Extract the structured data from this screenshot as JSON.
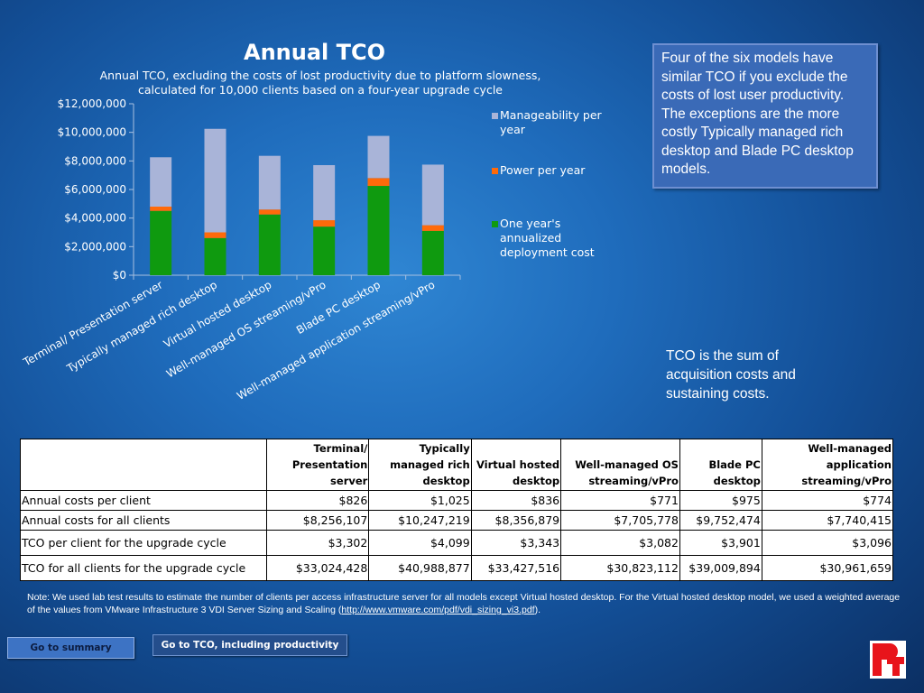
{
  "chart_data": {
    "type": "bar",
    "stacked": true,
    "title": "Annual TCO",
    "subtitle": "Annual TCO, excluding the costs of lost productivity due to platform slowness, calculated for 10,000 clients based on a four-year upgrade cycle",
    "categories": [
      "Terminal/ Presentation server",
      "Typically  managed rich desktop",
      "Virtual hosted desktop",
      "Well-managed OS streaming/vPro",
      "Blade PC desktop",
      "Well-managed application streaming/vPro"
    ],
    "series": [
      {
        "name": "One year's annualized deployment cost",
        "color": "#0f9a0f",
        "values": [
          4500000,
          2600000,
          4250000,
          3400000,
          6250000,
          3100000
        ]
      },
      {
        "name": "Power per year",
        "color": "#ff6a0a",
        "values": [
          300000,
          400000,
          350000,
          450000,
          550000,
          400000
        ]
      },
      {
        "name": "Manageability per year",
        "color": "#a9b4d8",
        "values": [
          3456107,
          7247219,
          3756879,
          3855778,
          2952474,
          4240415
        ]
      }
    ],
    "yticks": [
      "$0",
      "$2,000,000",
      "$4,000,000",
      "$6,000,000",
      "$8,000,000",
      "$10,000,000",
      "$12,000,000"
    ],
    "ylim": [
      0,
      12000000
    ],
    "legend_position": "right",
    "legend": [
      "Manageability per year",
      "Power per year",
      "One year's annualized deployment cost"
    ]
  },
  "callout": {
    "text": "Four of the six models have similar TCO if you exclude the costs of lost user productivity. The exceptions are the more costly Typically managed rich desktop and Blade PC desktop models."
  },
  "tco_note": "TCO is the sum of acquisition costs and sustaining costs.",
  "table": {
    "headers": [
      "Terminal/ Presentation server",
      "Typically managed rich desktop",
      "Virtual hosted desktop",
      "Well-managed OS streaming/vPro",
      "Blade PC desktop",
      "Well-managed application streaming/vPro"
    ],
    "rows": [
      {
        "label": "Annual costs per client",
        "values": [
          "$826",
          "$1,025",
          "$836",
          "$771",
          "$975",
          "$774"
        ]
      },
      {
        "label": "Annual costs for all clients",
        "values": [
          "$8,256,107",
          "$10,247,219",
          "$8,356,879",
          "$7,705,778",
          "$9,752,474",
          "$7,740,415"
        ]
      },
      {
        "label": "TCO per client for the upgrade cycle",
        "values": [
          "$3,302",
          "$4,099",
          "$3,343",
          "$3,082",
          "$3,901",
          "$3,096"
        ]
      },
      {
        "label": "TCO for all clients for the upgrade cycle",
        "values": [
          "$33,024,428",
          "$40,988,877",
          "$33,427,516",
          "$30,823,112",
          "$39,009,894",
          "$30,961,659"
        ]
      }
    ]
  },
  "footnote": {
    "text": "Note: We used lab test results to estimate the number of clients per access infrastructure server for all models except Virtual hosted desktop. For the Virtual hosted desktop model, we used a weighted average of the values from VMware Infrastructure 3 VDI Server Sizing and Scaling (",
    "link": "http://www.vmware.com/pdf/vdi_sizing_vi3.pdf",
    "end": ")."
  },
  "buttons": {
    "summary": "Go to summary",
    "tco_productivity": "Go to TCO, including productivity"
  },
  "logo": {
    "colors": [
      "#e8141b",
      "#ffffff"
    ]
  }
}
